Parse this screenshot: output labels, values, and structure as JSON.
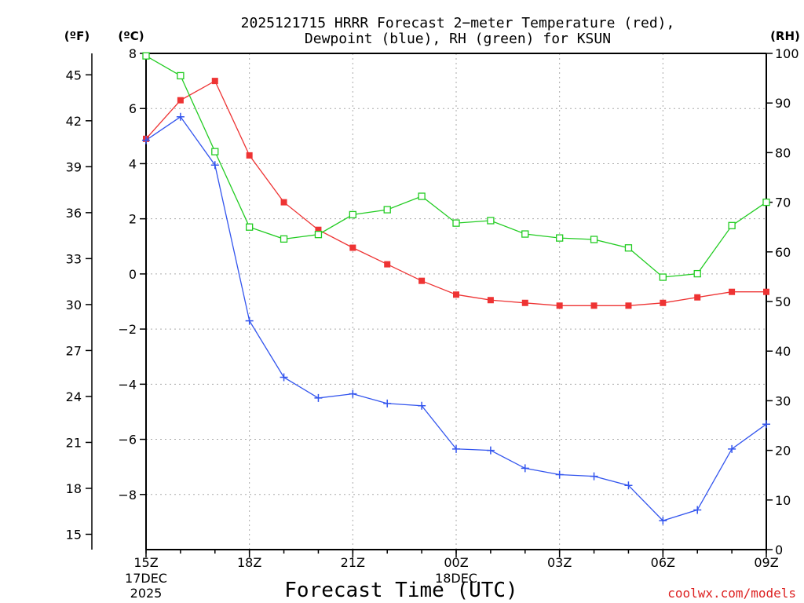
{
  "chart_data": {
    "type": "line",
    "title_line1": "2025121715 HRRR Forecast 2−meter Temperature (red),",
    "title_line2": "Dewpoint (blue), RH (green) for KSUN",
    "xlabel": "Forecast Time (UTC)",
    "credit": "coolwx.com/models",
    "axis_units": {
      "fahrenheit": "(ºF)",
      "celsius": "(ºC)",
      "rh": "(RH)"
    },
    "celsius_range": [
      -10,
      8
    ],
    "rh_range": [
      0,
      100
    ],
    "celsius_ticks": [
      {
        "value": 8,
        "label": "8"
      },
      {
        "value": 6,
        "label": "6"
      },
      {
        "value": 4,
        "label": "4"
      },
      {
        "value": 2,
        "label": "2"
      },
      {
        "value": 0,
        "label": "0"
      },
      {
        "value": -2,
        "label": "−2"
      },
      {
        "value": -4,
        "label": "−4"
      },
      {
        "value": -6,
        "label": "−6"
      },
      {
        "value": -8,
        "label": "−8"
      }
    ],
    "fahrenheit_ticks": [
      {
        "value": 45,
        "label": "45"
      },
      {
        "value": 42,
        "label": "42"
      },
      {
        "value": 39,
        "label": "39"
      },
      {
        "value": 36,
        "label": "36"
      },
      {
        "value": 33,
        "label": "33"
      },
      {
        "value": 30,
        "label": "30"
      },
      {
        "value": 27,
        "label": "27"
      },
      {
        "value": 24,
        "label": "24"
      },
      {
        "value": 21,
        "label": "21"
      },
      {
        "value": 18,
        "label": "18"
      },
      {
        "value": 15,
        "label": "15"
      }
    ],
    "rh_ticks": [
      {
        "value": 100,
        "label": "100"
      },
      {
        "value": 90,
        "label": "90"
      },
      {
        "value": 80,
        "label": "80"
      },
      {
        "value": 70,
        "label": "70"
      },
      {
        "value": 60,
        "label": "60"
      },
      {
        "value": 50,
        "label": "50"
      },
      {
        "value": 40,
        "label": "40"
      },
      {
        "value": 30,
        "label": "30"
      },
      {
        "value": 20,
        "label": "20"
      },
      {
        "value": 10,
        "label": "10"
      },
      {
        "value": 0,
        "label": "0"
      }
    ],
    "x_hours": [
      0,
      1,
      2,
      3,
      4,
      5,
      6,
      7,
      8,
      9,
      10,
      11,
      12,
      13,
      14,
      15,
      16,
      17,
      18
    ],
    "x_ticks": [
      {
        "hour": 0,
        "label": "15Z",
        "sub1": "17DEC",
        "sub2": "2025"
      },
      {
        "hour": 3,
        "label": "18Z"
      },
      {
        "hour": 6,
        "label": "21Z"
      },
      {
        "hour": 9,
        "label": "00Z",
        "sub1": "18DEC"
      },
      {
        "hour": 12,
        "label": "03Z"
      },
      {
        "hour": 15,
        "label": "06Z"
      },
      {
        "hour": 18,
        "label": "09Z"
      }
    ],
    "series": [
      {
        "name": "Temperature",
        "unit": "degC",
        "axis": "celsius",
        "color": "#ee3333",
        "marker": "filled-square",
        "values": [
          4.9,
          6.3,
          7.0,
          4.3,
          2.6,
          1.6,
          0.95,
          0.35,
          -0.25,
          -0.75,
          -0.95,
          -1.05,
          -1.15,
          -1.15,
          -1.15,
          -1.05,
          -0.85,
          -0.65,
          -0.65
        ]
      },
      {
        "name": "Dewpoint",
        "unit": "degC",
        "axis": "celsius",
        "color": "#3355ee",
        "marker": "plus",
        "values": [
          4.85,
          5.7,
          3.95,
          -1.7,
          -3.75,
          -4.5,
          -4.35,
          -4.7,
          -4.78,
          -6.35,
          -6.4,
          -7.05,
          -7.28,
          -7.34,
          -7.67,
          -8.95,
          -8.56,
          -6.35,
          -5.45
        ]
      },
      {
        "name": "RH",
        "unit": "%",
        "axis": "rh",
        "color": "#22cc22",
        "marker": "open-square",
        "values": [
          99.5,
          95.5,
          80.2,
          65.0,
          62.6,
          63.5,
          67.5,
          68.5,
          71.2,
          65.8,
          66.3,
          63.6,
          62.8,
          62.5,
          60.8,
          54.9,
          55.6,
          65.3,
          70.0
        ]
      }
    ]
  }
}
